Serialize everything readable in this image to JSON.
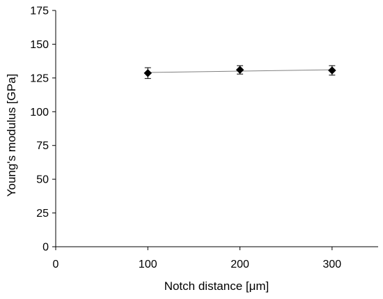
{
  "chart_data": {
    "type": "scatter",
    "title": "",
    "xlabel": "Notch distance [μm]",
    "ylabel": "Young's modulus [GPa]",
    "xlim": [
      0,
      350
    ],
    "ylim": [
      0,
      175
    ],
    "xticks": [
      0,
      100,
      200,
      300
    ],
    "yticks": [
      0,
      25,
      50,
      75,
      100,
      125,
      150,
      175
    ],
    "grid": false,
    "legend": "none",
    "series": [
      {
        "marker": "diamond",
        "color": "#000000",
        "trendline": true,
        "trendline_color": "#808080",
        "points": [
          {
            "x": 100,
            "y": 128.6,
            "err": 4.0
          },
          {
            "x": 200,
            "y": 131.0,
            "err": 3.1
          },
          {
            "x": 300,
            "y": 130.6,
            "err": 3.5
          }
        ]
      }
    ]
  }
}
